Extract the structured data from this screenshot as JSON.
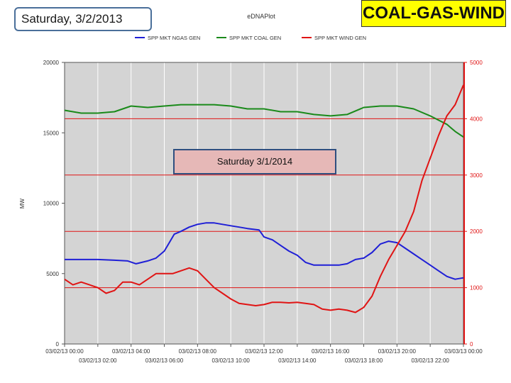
{
  "slide": {
    "title": "Saturday, 3/2/2013",
    "banner": "COAL-GAS-WIND",
    "callout": "Saturday 3/1/2014"
  },
  "chart_data": {
    "type": "line",
    "title": "eDNAPlot",
    "ylabel": "MW",
    "ylim": [
      0,
      20000
    ],
    "y_ticks": [
      0,
      5000,
      10000,
      15000,
      20000
    ],
    "y2lim": [
      0,
      5000
    ],
    "y2_ticks": [
      0,
      1000,
      2000,
      3000,
      4000,
      5000
    ],
    "xlim": [
      0,
      24
    ],
    "x_ticks_upper": [
      "03/02/13 00:00",
      "03/02/13 04:00",
      "03/02/13 08:00",
      "03/02/13 12:00",
      "03/02/13 16:00",
      "03/02/13 20:00",
      "03/03/13 00:00"
    ],
    "x_ticks_lower": [
      "03/02/13 02:00",
      "03/02/13 06:00",
      "03/02/13 10:00",
      "03/02/13 14:00",
      "03/02/13 18:00",
      "03/02/13 22:00"
    ],
    "legend_position": "top",
    "background": "#d4d4d4",
    "series": [
      {
        "name": "SPP MKT NGAS GEN",
        "axis": "left",
        "color": "#1f1fd6",
        "x": [
          0,
          1,
          2,
          3,
          3.8,
          4.3,
          5,
          5.5,
          6,
          6.2,
          6.6,
          7,
          7.5,
          8,
          8.5,
          9,
          9.5,
          10,
          10.5,
          11,
          11.7,
          12,
          12.5,
          13,
          13.5,
          14,
          14.5,
          15,
          15.5,
          16,
          16.5,
          17,
          17.5,
          18,
          18.5,
          19,
          19.5,
          20,
          20.5,
          21,
          21.5,
          22,
          22.5,
          23,
          23.5,
          24
        ],
        "y": [
          6000,
          6000,
          6000,
          5950,
          5900,
          5700,
          5900,
          6100,
          6600,
          7000,
          7800,
          8000,
          8300,
          8500,
          8600,
          8600,
          8500,
          8400,
          8300,
          8200,
          8100,
          7600,
          7400,
          7000,
          6600,
          6300,
          5800,
          5600,
          5600,
          5600,
          5600,
          5700,
          6000,
          6100,
          6500,
          7100,
          7300,
          7200,
          6800,
          6400,
          6000,
          5600,
          5200,
          4800,
          4600,
          4700
        ]
      },
      {
        "name": "SPP MKT COAL GEN",
        "axis": "left",
        "color": "#1a8a1a",
        "x": [
          0,
          1,
          2,
          3,
          4,
          5,
          6,
          7,
          8,
          9,
          10,
          11,
          12,
          13,
          14,
          15,
          16,
          17,
          18,
          19,
          20,
          21,
          22,
          22.5,
          23,
          23.5,
          24
        ],
        "y": [
          16600,
          16400,
          16400,
          16500,
          16900,
          16800,
          16900,
          17000,
          17000,
          17000,
          16900,
          16700,
          16700,
          16500,
          16500,
          16300,
          16200,
          16300,
          16800,
          16900,
          16900,
          16700,
          16200,
          15900,
          15600,
          15100,
          14700
        ]
      },
      {
        "name": "SPP MKT WIND GEN",
        "axis": "right",
        "color": "#e01414",
        "x": [
          0,
          0.5,
          1,
          1.5,
          2,
          2.5,
          3,
          3.5,
          4,
          4.5,
          5,
          5.5,
          6,
          6.5,
          7,
          7.5,
          8,
          8.5,
          9,
          9.5,
          10,
          10.5,
          11,
          11.5,
          12,
          12.5,
          13,
          13.5,
          14,
          14.5,
          15,
          15.5,
          16,
          16.5,
          17,
          17.5,
          18,
          18.5,
          19,
          19.5,
          20,
          20.5,
          21,
          21.5,
          22,
          22.5,
          23,
          23.5,
          24
        ],
        "y": [
          1150,
          1050,
          1100,
          1050,
          1000,
          900,
          950,
          1100,
          1100,
          1050,
          1150,
          1250,
          1250,
          1250,
          1300,
          1350,
          1300,
          1150,
          1000,
          900,
          800,
          720,
          700,
          680,
          700,
          740,
          740,
          730,
          740,
          720,
          700,
          620,
          600,
          620,
          600,
          560,
          650,
          850,
          1200,
          1500,
          1750,
          2000,
          2350,
          2900,
          3300,
          3700,
          4050,
          4250,
          4600
        ]
      }
    ]
  }
}
